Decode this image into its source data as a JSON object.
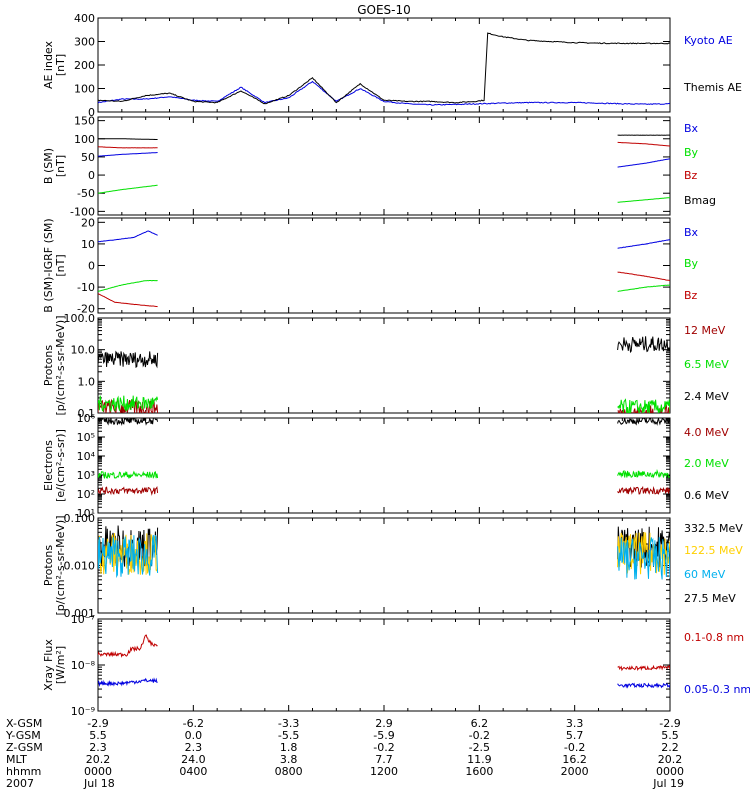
{
  "title": "GOES-10",
  "colors": {
    "black": "#000000",
    "blue": "#0000e0",
    "green": "#00e000",
    "red": "#c00000",
    "darkred": "#a00000",
    "cyan": "#00b0ee",
    "yellow": "#ffd000"
  },
  "chart_data": [
    {
      "type": "line",
      "id": "ae",
      "ylabel": [
        "AE index",
        "[nT]"
      ],
      "scale": "linear",
      "ylim": [
        0,
        400
      ],
      "yticks": [
        "0",
        "100",
        "200",
        "300",
        "400"
      ],
      "ytick_values": [
        0,
        100,
        200,
        300,
        400
      ],
      "series": [
        {
          "name": "Kyoto AE",
          "color": "blue",
          "x": [
            0,
            1,
            2,
            3,
            4,
            5,
            6,
            7,
            8,
            9,
            10,
            11,
            12,
            13,
            14,
            15,
            16,
            17,
            18,
            19,
            20,
            21,
            22,
            23,
            24
          ],
          "y": [
            40,
            55,
            55,
            65,
            50,
            45,
            105,
            40,
            60,
            130,
            45,
            100,
            45,
            35,
            30,
            32,
            35,
            38,
            40,
            40,
            40,
            38,
            35,
            33,
            35
          ]
        },
        {
          "name": "Themis AE",
          "color": "black",
          "x": [
            0,
            1,
            2,
            3,
            4,
            5,
            6,
            7,
            8,
            9,
            10,
            11,
            12,
            13,
            14,
            15,
            15.8,
            16.2,
            16.35,
            17,
            18,
            19,
            20,
            21,
            22,
            23,
            24
          ],
          "y": [
            50,
            45,
            70,
            80,
            45,
            40,
            90,
            35,
            70,
            145,
            40,
            120,
            50,
            45,
            45,
            40,
            45,
            50,
            335,
            320,
            305,
            300,
            295,
            293,
            292,
            292,
            292
          ]
        }
      ]
    },
    {
      "type": "line",
      "id": "b-sm",
      "ylabel": [
        "B (SM)",
        "[nT]"
      ],
      "scale": "linear",
      "ylim": [
        -110,
        160
      ],
      "yticks": [
        "-100",
        "-50",
        "0",
        "50",
        "100",
        "150"
      ],
      "ytick_values": [
        -100,
        -50,
        0,
        50,
        100,
        150
      ],
      "series": [
        {
          "name": "Bx",
          "color": "blue",
          "segments": [
            {
              "x": [
                0,
                1,
                2.5
              ],
              "y": [
                52,
                57,
                62
              ]
            },
            {
              "x": [
                21.8,
                23,
                24
              ],
              "y": [
                22,
                33,
                45
              ]
            }
          ]
        },
        {
          "name": "By",
          "color": "green",
          "segments": [
            {
              "x": [
                0,
                1,
                2.5
              ],
              "y": [
                -50,
                -40,
                -28
              ]
            },
            {
              "x": [
                21.8,
                23,
                24
              ],
              "y": [
                -75,
                -68,
                -62
              ]
            }
          ]
        },
        {
          "name": "Bz",
          "color": "red",
          "segments": [
            {
              "x": [
                0,
                1,
                2.5
              ],
              "y": [
                78,
                75,
                75
              ]
            },
            {
              "x": [
                21.8,
                23,
                24
              ],
              "y": [
                90,
                86,
                80
              ]
            }
          ]
        },
        {
          "name": "Bmag",
          "color": "black",
          "segments": [
            {
              "x": [
                0,
                1,
                2.5
              ],
              "y": [
                100,
                100,
                98
              ]
            },
            {
              "x": [
                21.8,
                23,
                24
              ],
              "y": [
                110,
                110,
                110
              ]
            }
          ]
        }
      ]
    },
    {
      "type": "line",
      "id": "b-igrf",
      "ylabel": [
        "B (SM)-IGRF (SM)",
        "[nT]"
      ],
      "scale": "linear",
      "ylim": [
        -22,
        22
      ],
      "yticks": [
        "-20",
        "-10",
        "0",
        "10",
        "20"
      ],
      "ytick_values": [
        -20,
        -10,
        0,
        10,
        20
      ],
      "series": [
        {
          "name": "Bx",
          "color": "blue",
          "segments": [
            {
              "x": [
                0,
                0.8,
                1.5,
                2.1,
                2.5
              ],
              "y": [
                11,
                12,
                13,
                16,
                14
              ]
            },
            {
              "x": [
                21.8,
                23,
                24
              ],
              "y": [
                8,
                10,
                12
              ]
            }
          ]
        },
        {
          "name": "By",
          "color": "green",
          "segments": [
            {
              "x": [
                0,
                1,
                2,
                2.5
              ],
              "y": [
                -12,
                -9,
                -7,
                -7
              ]
            },
            {
              "x": [
                21.8,
                23,
                24
              ],
              "y": [
                -12,
                -10,
                -9
              ]
            }
          ]
        },
        {
          "name": "Bz",
          "color": "red",
          "segments": [
            {
              "x": [
                0,
                0.7,
                1.5,
                2.5
              ],
              "y": [
                -13,
                -17,
                -18,
                -19
              ]
            },
            {
              "x": [
                21.8,
                23,
                24
              ],
              "y": [
                -3,
                -5,
                -7
              ]
            }
          ]
        }
      ]
    },
    {
      "type": "line",
      "id": "protons-low",
      "ylabel": [
        "Protons",
        "[p/(cm²-s-sr-MeV)]"
      ],
      "scale": "log",
      "ylim": [
        0.1,
        100
      ],
      "yticks": [
        "0.1",
        "1.0",
        "10.0",
        "100.0"
      ],
      "ytick_values": [
        0.1,
        1,
        10,
        100
      ],
      "series": [
        {
          "name": "12 MeV",
          "color": "darkred",
          "segments": [
            {
              "x": [
                0,
                2.5
              ],
              "y": [
                0.15,
                0.15
              ]
            },
            {
              "x": [
                21.8,
                24
              ],
              "y": [
                0.1,
                0.1
              ]
            }
          ]
        },
        {
          "name": "6.5 MeV",
          "color": "green",
          "segments": [
            {
              "x": [
                0,
                2.5
              ],
              "y": [
                0.2,
                0.2
              ]
            },
            {
              "x": [
                21.8,
                24
              ],
              "y": [
                0.15,
                0.15
              ]
            }
          ]
        },
        {
          "name": "2.4 MeV",
          "color": "black",
          "segments": [
            {
              "x": [
                0,
                2.5
              ],
              "y": [
                5,
                5
              ]
            },
            {
              "x": [
                21.8,
                24
              ],
              "y": [
                15,
                15
              ]
            }
          ]
        }
      ]
    },
    {
      "type": "line",
      "id": "electrons",
      "ylabel": [
        "Electrons",
        "[e/(cm²-s-sr)]"
      ],
      "scale": "log",
      "ylim": [
        10,
        1000000
      ],
      "yticks": [
        "10¹",
        "10²",
        "10³",
        "10⁴",
        "10⁵",
        "10⁶"
      ],
      "ytick_values": [
        10,
        100,
        1000,
        10000,
        100000,
        1000000
      ],
      "series": [
        {
          "name": "4.0 MeV",
          "color": "darkred",
          "segments": [
            {
              "x": [
                0,
                2.5
              ],
              "y": [
                150,
                150
              ]
            },
            {
              "x": [
                21.8,
                24
              ],
              "y": [
                150,
                150
              ]
            }
          ]
        },
        {
          "name": "2.0 MeV",
          "color": "green",
          "segments": [
            {
              "x": [
                0,
                2.5
              ],
              "y": [
                1000,
                1000
              ]
            },
            {
              "x": [
                21.8,
                24
              ],
              "y": [
                1100,
                1100
              ]
            }
          ]
        },
        {
          "name": "0.6 MeV",
          "color": "black",
          "segments": [
            {
              "x": [
                0,
                2.5
              ],
              "y": [
                700000,
                700000
              ]
            },
            {
              "x": [
                21.8,
                24
              ],
              "y": [
                700000,
                700000
              ]
            }
          ]
        }
      ]
    },
    {
      "type": "line",
      "id": "protons-high",
      "ylabel": [
        "Protons",
        "[p/(cm²-s-sr-MeV)]"
      ],
      "scale": "log",
      "ylim": [
        0.001,
        0.1
      ],
      "yticks": [
        "0.001",
        "0.010",
        "0.100"
      ],
      "ytick_values": [
        0.001,
        0.01,
        0.1
      ],
      "series": [
        {
          "name": "332.5 MeV",
          "color": "black",
          "segments": [
            {
              "x": [
                0,
                2.5
              ],
              "y": [
                0.025,
                0.025
              ]
            },
            {
              "x": [
                21.8,
                24
              ],
              "y": [
                0.025,
                0.025
              ]
            }
          ]
        },
        {
          "name": "122.5 MeV",
          "color": "yellow",
          "segments": [
            {
              "x": [
                0,
                2.5
              ],
              "y": [
                0.018,
                0.018
              ]
            },
            {
              "x": [
                21.8,
                24
              ],
              "y": [
                0.018,
                0.018
              ]
            }
          ]
        },
        {
          "name": "60 MeV",
          "color": "cyan",
          "segments": [
            {
              "x": [
                0,
                2.5
              ],
              "y": [
                0.016,
                0.016
              ]
            },
            {
              "x": [
                21.8,
                24
              ],
              "y": [
                0.014,
                0.014
              ]
            }
          ]
        },
        {
          "name": "27.5 MeV",
          "color": "black"
        }
      ]
    },
    {
      "type": "line",
      "id": "xray",
      "ylabel": [
        "Xray Flux",
        "[W/m²]"
      ],
      "scale": "log",
      "ylim": [
        1e-09,
        1e-07
      ],
      "yticks": [
        "10⁻⁹",
        "10⁻⁸",
        "10⁻⁷"
      ],
      "ytick_values": [
        1e-09,
        1e-08,
        1e-07
      ],
      "series": [
        {
          "name": "0.1-0.8 nm",
          "color": "red",
          "segments": [
            {
              "x": [
                0,
                1.2,
                1.4,
                1.8,
                2.0,
                2.2,
                2.5
              ],
              "y": [
                1.7e-08,
                1.7e-08,
                2.2e-08,
                2.3e-08,
                4.3e-08,
                3e-08,
                2.6e-08
              ]
            },
            {
              "x": [
                21.8,
                24
              ],
              "y": [
                8.5e-09,
                8.7e-09
              ]
            }
          ]
        },
        {
          "name": "0.05-0.3 nm",
          "color": "blue",
          "segments": [
            {
              "x": [
                0,
                1,
                2,
                2.5
              ],
              "y": [
                4e-09,
                4e-09,
                4.6e-09,
                4.5e-09
              ]
            },
            {
              "x": [
                21.8,
                24
              ],
              "y": [
                3.6e-09,
                3.6e-09
              ]
            }
          ]
        }
      ]
    }
  ],
  "x_axis": {
    "xlim": [
      0,
      24
    ],
    "major_hours": [
      0,
      4,
      8,
      12,
      16,
      20,
      24
    ],
    "row_labels": [
      "X-GSM",
      "Y-GSM",
      "Z-GSM",
      "MLT",
      "hhmm",
      "2007"
    ],
    "columns": [
      [
        "-2.9",
        "5.5",
        "2.3",
        "20.2",
        "0000",
        "Jul 18"
      ],
      [
        "-6.2",
        "0.0",
        "2.3",
        "24.0",
        "0400",
        ""
      ],
      [
        "-3.3",
        "-5.5",
        "1.8",
        "3.8",
        "0800",
        ""
      ],
      [
        "2.9",
        "-5.9",
        "-0.2",
        "7.7",
        "1200",
        ""
      ],
      [
        "6.2",
        "-0.2",
        "-2.5",
        "11.9",
        "1600",
        ""
      ],
      [
        "3.3",
        "5.7",
        "-0.2",
        "16.2",
        "2000",
        ""
      ],
      [
        "-2.9",
        "5.5",
        "2.2",
        "20.2",
        "0000",
        "Jul 19"
      ]
    ]
  }
}
